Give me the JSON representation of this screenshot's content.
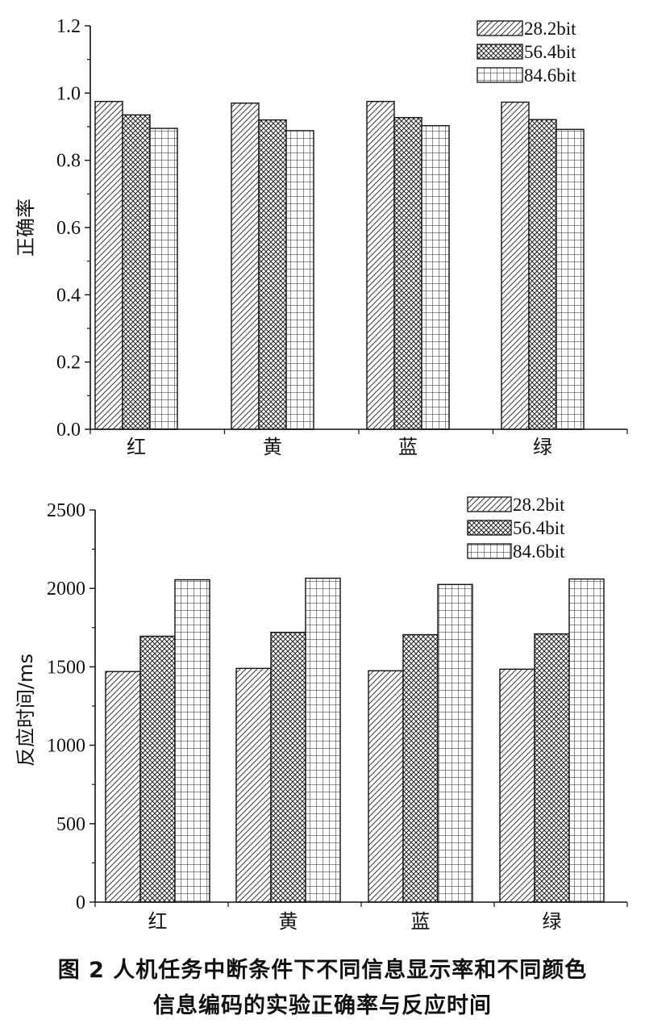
{
  "chart_data": [
    {
      "type": "bar",
      "categories": [
        "红",
        "黄",
        "蓝",
        "绿"
      ],
      "series": [
        {
          "name": "28.2bit",
          "values": [
            0.975,
            0.97,
            0.975,
            0.973
          ]
        },
        {
          "name": "56.4bit",
          "values": [
            0.935,
            0.92,
            0.927,
            0.921
          ]
        },
        {
          "name": "84.6bit",
          "values": [
            0.895,
            0.888,
            0.903,
            0.892
          ]
        }
      ],
      "title": "",
      "xlabel": "",
      "ylabel": "正确率",
      "ylim": [
        0,
        1.2
      ],
      "yticks": [
        "0.0",
        "0.2",
        "0.4",
        "0.6",
        "0.8",
        "1.0",
        "1.2"
      ],
      "legend": "top-right",
      "grid": false,
      "patterns": [
        "diagonal-hatch",
        "crosshatch",
        "grid"
      ]
    },
    {
      "type": "bar",
      "categories": [
        "红",
        "黄",
        "蓝",
        "绿"
      ],
      "series": [
        {
          "name": "28.2bit",
          "values": [
            1470,
            1490,
            1475,
            1485
          ]
        },
        {
          "name": "56.4bit",
          "values": [
            1695,
            1720,
            1705,
            1710
          ]
        },
        {
          "name": "84.6bit",
          "values": [
            2055,
            2065,
            2025,
            2060
          ]
        }
      ],
      "title": "",
      "xlabel": "",
      "ylabel": "反应时间/ms",
      "ylim": [
        0,
        2500
      ],
      "yticks": [
        "0",
        "500",
        "1000",
        "1500",
        "2000",
        "2500"
      ],
      "legend": "top-right",
      "grid": false,
      "patterns": [
        "diagonal-hatch",
        "crosshatch",
        "grid"
      ]
    }
  ],
  "caption": {
    "line1": "图 2  人机任务中断条件下不同信息显示率和不同颜色",
    "line2": "信息编码的实验正确率与反应时间"
  }
}
